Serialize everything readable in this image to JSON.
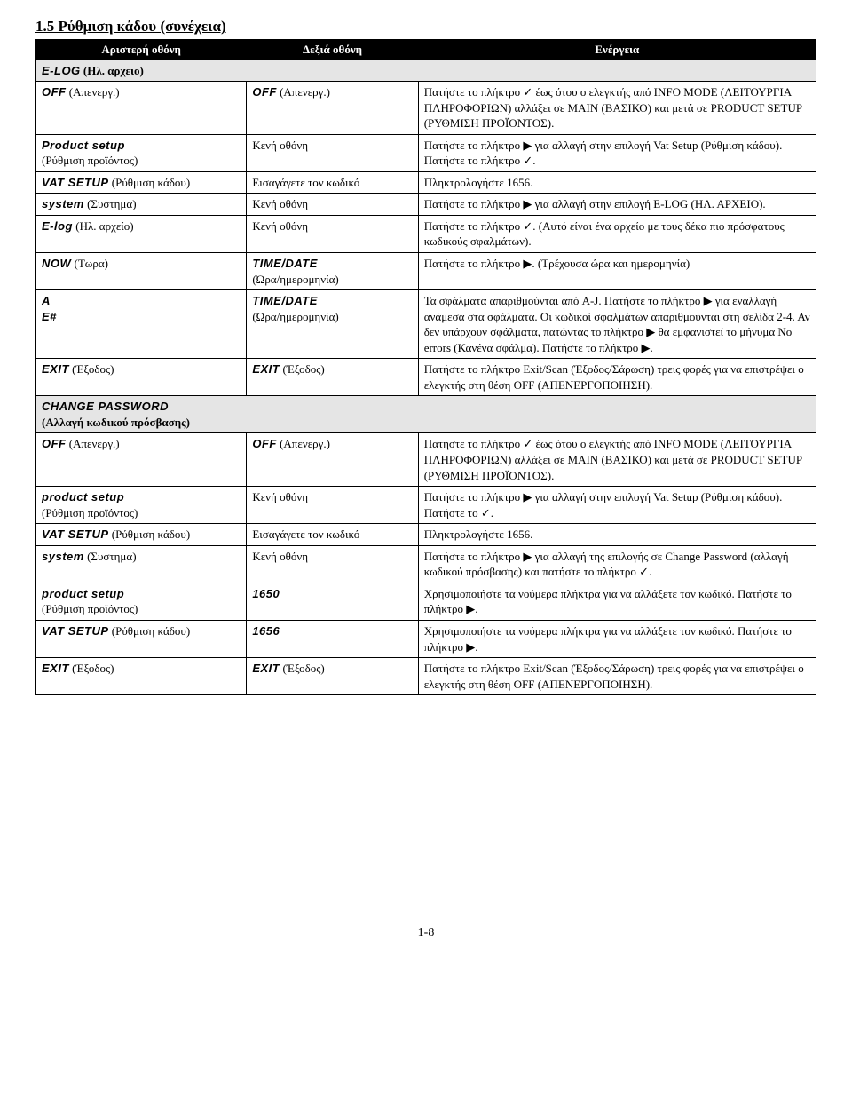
{
  "section_title": "1.5  Ρύθμιση κάδου (συνέχεια)",
  "header": {
    "left": "Αριστερή οθόνη",
    "mid": "Δεξιά οθόνη",
    "right": "Ενέργεια"
  },
  "sub1_lcd": "E-LOG",
  "sub1_txt": " (Ηλ. αρχειο)",
  "r1": {
    "l_lcd": "OFF",
    "l_txt": " (Απενεργ.)",
    "m_lcd": "OFF",
    "m_txt": " (Απενεργ.)",
    "a": "Πατήστε το πλήκτρο ✓ έως ότου ο ελεγκτής από INFO MODE (ΛΕΙΤΟΥΡΓΙΑ ΠΛΗΡΟΦΟΡΙΩΝ) αλλάξει σε MAIN (ΒΑΣΙΚΟ) και μετά σε PRODUCT SETUP (ΡΥΘΜΙΣΗ ΠΡΟΪΟΝΤΟΣ)."
  },
  "r2": {
    "l_lcd": "Product setup",
    "l_txt": "(Ρύθμιση προϊόντος)",
    "m": "Κενή οθόνη",
    "a": "Πατήστε το πλήκτρο ▶ για αλλαγή στην επιλογή Vat Setup (Ρύθμιση κάδου). Πατήστε το πλήκτρο ✓."
  },
  "r3": {
    "l_lcd": "VAT SETUP",
    "l_txt": " (Ρύθμιση κάδου)",
    "m": "Εισαγάγετε τον κωδικό",
    "a": "Πληκτρολογήστε 1656."
  },
  "r4": {
    "l_lcd": "system",
    "l_txt": " (Συστημα)",
    "m": "Κενή οθόνη",
    "a": "Πατήστε το πλήκτρο ▶ για αλλαγή στην επιλογή E-LOG (ΗΛ. ΑΡΧΕΙΟ)."
  },
  "r5": {
    "l_lcd": "E-log",
    "l_txt": " (Ηλ. αρχείο)",
    "m": "Κενή οθόνη",
    "a": "Πατήστε το πλήκτρο ✓. (Αυτό είναι ένα αρχείο με τους δέκα πιο πρόσφατους κωδικούς σφαλμάτων)."
  },
  "r6": {
    "l_lcd": "NOW",
    "l_txt": " (Τωρα)",
    "m_lcd": "TIME/DATE",
    "m_txt": "(Ώρα/ημερομηνία)",
    "a": "Πατήστε το πλήκτρο ▶. (Τρέχουσα ώρα και ημερομηνία)"
  },
  "r7": {
    "l_lcd1": "A",
    "l_lcd2": "E#",
    "m_lcd": "TIME/DATE",
    "m_txt": "(Ώρα/ημερομηνία)",
    "a": "Τα σφάλματα απαριθμούνται από A-J.  Πατήστε το πλήκτρο ▶ για εναλλαγή ανάμεσα στα σφάλματα.  Οι κωδικοί σφαλμάτων απαριθμούνται στη σελίδα 2-4.  Αν δεν υπάρχουν σφάλματα, πατώντας το πλήκτρο ▶ θα εμφανιστεί το μήνυμα No errors (Κανένα σφάλμα).  Πατήστε το πλήκτρο ▶."
  },
  "r8": {
    "l_lcd": "EXIT",
    "l_txt": " (Έξοδος)",
    "m_lcd": "EXIT",
    "m_txt": " (Έξοδος)",
    "a": "Πατήστε το πλήκτρο Exit/Scan (Έξοδος/Σάρωση) τρεις φορές για να επιστρέψει ο ελεγκτής στη θέση OFF (ΑΠΕΝΕΡΓΟΠΟΙΗΣΗ)."
  },
  "sub2_lcd": "CHANGE PASSWORD",
  "sub2_txt": "(Αλλαγή κωδικού πρόσβασης)",
  "r9": {
    "l_lcd": "OFF",
    "l_txt": " (Απενεργ.)",
    "m_lcd": "OFF",
    "m_txt": " (Απενεργ.)",
    "a": "Πατήστε το πλήκτρο ✓ έως ότου ο ελεγκτής από INFO MODE (ΛΕΙΤΟΥΡΓΙΑ ΠΛΗΡΟΦΟΡΙΩΝ) αλλάξει σε MAIN (ΒΑΣΙΚΟ) και μετά σε PRODUCT SETUP (ΡΥΘΜΙΣΗ ΠΡΟΪΟΝΤΟΣ)."
  },
  "r10": {
    "l_lcd": "product setup",
    "l_txt": "(Ρύθμιση προϊόντος)",
    "m": "Κενή οθόνη",
    "a": "Πατήστε το πλήκτρο ▶ για αλλαγή στην επιλογή Vat Setup (Ρύθμιση κάδου). Πατήστε το ✓."
  },
  "r11": {
    "l_lcd": "VAT SETUP",
    "l_txt": " (Ρύθμιση κάδου)",
    "m": "Εισαγάγετε τον κωδικό",
    "a": "Πληκτρολογήστε 1656."
  },
  "r12": {
    "l_lcd": "system",
    "l_txt": " (Συστημα)",
    "m": "Κενή οθόνη",
    "a": "Πατήστε το πλήκτρο ▶ για αλλαγή της επιλογής σε Change Password (αλλαγή κωδικού πρόσβασης) και πατήστε το πλήκτρο ✓."
  },
  "r13": {
    "l_lcd": "product setup",
    "l_txt": "(Ρύθμιση προϊόντος)",
    "m_lcd": "1650",
    "a": "Χρησιμοποιήστε τα νούμερα πλήκτρα για να αλλάξετε τον κωδικό.  Πατήστε το πλήκτρο ▶."
  },
  "r14": {
    "l_lcd": "VAT SETUP",
    "l_txt": " (Ρύθμιση κάδου)",
    "m_lcd": "1656",
    "a": "Χρησιμοποιήστε τα νούμερα πλήκτρα για να αλλάξετε τον κωδικό.  Πατήστε το πλήκτρο ▶."
  },
  "r15": {
    "l_lcd": "EXIT",
    "l_txt": " (Έξοδος)",
    "m_lcd": "EXIT",
    "m_txt": " (Έξοδος)",
    "a": "Πατήστε το πλήκτρο Exit/Scan (Έξοδος/Σάρωση) τρεις φορές για να επιστρέψει ο ελεγκτής στη θέση OFF (ΑΠΕΝΕΡΓΟΠΟΙΗΣΗ)."
  },
  "page_num": "1-8"
}
